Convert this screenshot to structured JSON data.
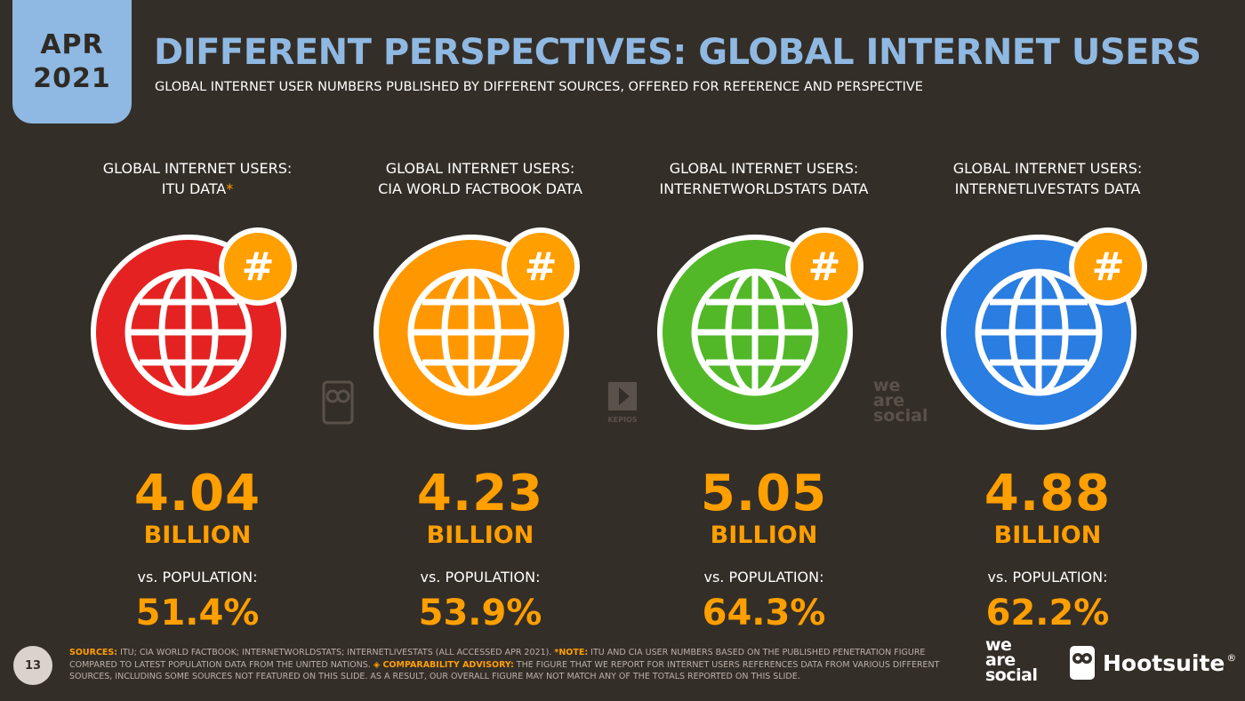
{
  "date": {
    "month": "APR",
    "year": "2021"
  },
  "title": "DIFFERENT PERSPECTIVES: GLOBAL INTERNET USERS",
  "subtitle": "GLOBAL INTERNET USER NUMBERS PUBLISHED BY DIFFERENT SOURCES, OFFERED FOR REFERENCE AND PERSPECTIVE",
  "columns": [
    {
      "label_line1": "GLOBAL INTERNET USERS:",
      "label_line2": "ITU DATA",
      "star": "*",
      "color": "#e52222",
      "value": "4.04",
      "unit": "BILLION",
      "vs_label": "vs. POPULATION:",
      "pct": "51.4%"
    },
    {
      "label_line1": "GLOBAL INTERNET USERS:",
      "label_line2": "CIA WORLD FACTBOOK DATA",
      "star": "",
      "color": "#ff9800",
      "value": "4.23",
      "unit": "BILLION",
      "vs_label": "vs. POPULATION:",
      "pct": "53.9%"
    },
    {
      "label_line1": "GLOBAL INTERNET USERS:",
      "label_line2": "INTERNETWORLDSTATS DATA",
      "star": "",
      "color": "#52b828",
      "value": "5.05",
      "unit": "BILLION",
      "vs_label": "vs. POPULATION:",
      "pct": "64.3%"
    },
    {
      "label_line1": "GLOBAL INTERNET USERS:",
      "label_line2": "INTERNETLIVESTATS DATA",
      "star": "",
      "color": "#2a7de1",
      "value": "4.88",
      "unit": "BILLION",
      "vs_label": "vs. POPULATION:",
      "pct": "62.2%"
    }
  ],
  "badge_symbol": "#",
  "accent_color": "#ff9f00",
  "watermarks": {
    "kepios": "KEPIOS",
    "was": [
      "we",
      "are",
      "social"
    ]
  },
  "page_number": "13",
  "footer": {
    "sources_label": "SOURCES:",
    "sources_text": " ITU; CIA WORLD FACTBOOK; INTERNETWORLDSTATS; INTERNETLIVESTATS (ALL ACCESSED APR 2021). ",
    "note_label": "*NOTE:",
    "note_text": " ITU AND CIA USER NUMBERS BASED ON THE PUBLISHED PENETRATION FIGURE COMPARED TO LATEST POPULATION DATA FROM THE UNITED NATIONS. ",
    "advisory_label": "◈ COMPARABILITY ADVISORY:",
    "advisory_text": " THE FIGURE THAT WE REPORT FOR INTERNET USERS REFERENCES DATA FROM VARIOUS DIFFERENT SOURCES, INCLUDING SOME SOURCES NOT FEATURED ON THIS SLIDE. AS A RESULT, OUR OVERALL FIGURE MAY NOT MATCH ANY OF THE TOTALS REPORTED ON THIS SLIDE."
  },
  "logos": {
    "was": [
      "we",
      "are",
      "social"
    ],
    "hootsuite": "Hootsuite",
    "hootsuite_mark": "®"
  }
}
